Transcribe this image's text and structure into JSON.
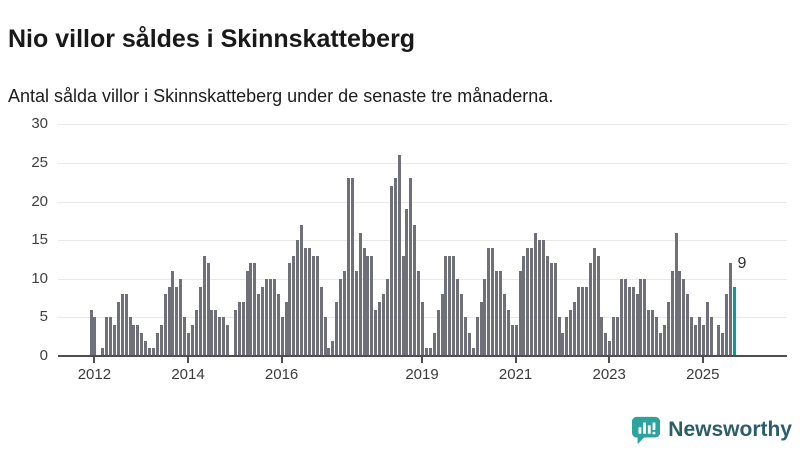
{
  "header": {
    "title": "Nio villor såldes i Skinnskatteberg",
    "subtitle": "Antal sålda villor i Skinnskatteberg under de senaste tre månaderna."
  },
  "chart_data": {
    "type": "bar",
    "title": "Nio villor såldes i Skinnskatteberg",
    "subtitle": "Antal sålda villor i Skinnskatteberg under de senaste tre månaderna.",
    "frequency": "monthly",
    "start_month": "2011-12",
    "end_month": "2025-09",
    "ylim": [
      0,
      30
    ],
    "yticks": [
      0,
      5,
      10,
      15,
      20,
      25,
      30
    ],
    "xtick_years": [
      2012,
      2014,
      2016,
      2019,
      2021,
      2023,
      2025
    ],
    "grid": "horizontal",
    "legend": "none",
    "values_by_year": [
      {
        "year": 2011,
        "first_month": 12,
        "values": [
          6
        ]
      },
      {
        "year": 2012,
        "values": [
          5,
          0,
          1,
          5,
          5,
          4,
          7,
          8,
          8,
          5,
          4,
          4
        ]
      },
      {
        "year": 2013,
        "values": [
          3,
          2,
          1,
          1,
          3,
          4,
          8,
          9,
          11,
          9,
          10,
          5
        ]
      },
      {
        "year": 2014,
        "values": [
          3,
          4,
          6,
          9,
          13,
          12,
          6,
          6,
          5,
          5,
          4,
          0
        ]
      },
      {
        "year": 2015,
        "values": [
          6,
          7,
          7,
          11,
          12,
          12,
          8,
          9,
          10,
          10,
          10,
          8
        ]
      },
      {
        "year": 2016,
        "values": [
          5,
          7,
          12,
          13,
          15,
          17,
          14,
          14,
          13,
          13,
          9,
          5
        ]
      },
      {
        "year": 2017,
        "values": [
          1,
          2,
          7,
          10,
          11,
          23,
          23,
          11,
          16,
          14,
          13,
          13
        ]
      },
      {
        "year": 2018,
        "values": [
          6,
          7,
          8,
          10,
          22,
          23,
          26,
          13,
          19,
          23,
          17,
          11
        ]
      },
      {
        "year": 2019,
        "values": [
          7,
          1,
          1,
          3,
          6,
          8,
          13,
          13,
          13,
          10,
          8,
          5
        ]
      },
      {
        "year": 2020,
        "values": [
          3,
          1,
          5,
          7,
          10,
          14,
          14,
          11,
          11,
          8,
          6,
          4
        ]
      },
      {
        "year": 2021,
        "values": [
          4,
          11,
          13,
          14,
          14,
          16,
          15,
          15,
          13,
          12,
          12,
          5
        ]
      },
      {
        "year": 2022,
        "values": [
          3,
          5,
          6,
          7,
          9,
          9,
          9,
          12,
          14,
          13,
          5,
          3
        ]
      },
      {
        "year": 2023,
        "values": [
          2,
          5,
          5,
          10,
          10,
          9,
          9,
          8,
          10,
          10,
          6,
          6
        ]
      },
      {
        "year": 2024,
        "values": [
          5,
          3,
          4,
          7,
          11,
          16,
          11,
          10,
          8,
          5,
          4,
          5
        ]
      },
      {
        "year": 2025,
        "values": [
          4,
          7,
          5,
          0,
          4,
          3,
          8,
          12,
          9
        ]
      }
    ],
    "highlight_last_bar": {
      "value": 9,
      "label": "9"
    },
    "colors": {
      "bar": "#70707a",
      "highlight": "#00a19c",
      "gridline": "#e9e9e9",
      "axis": "#4d4d52",
      "tick_text": "#404040"
    }
  },
  "footer": {
    "brand": "Newsworthy",
    "logo_icon": "bar-chart-speech-bubble-icon"
  }
}
